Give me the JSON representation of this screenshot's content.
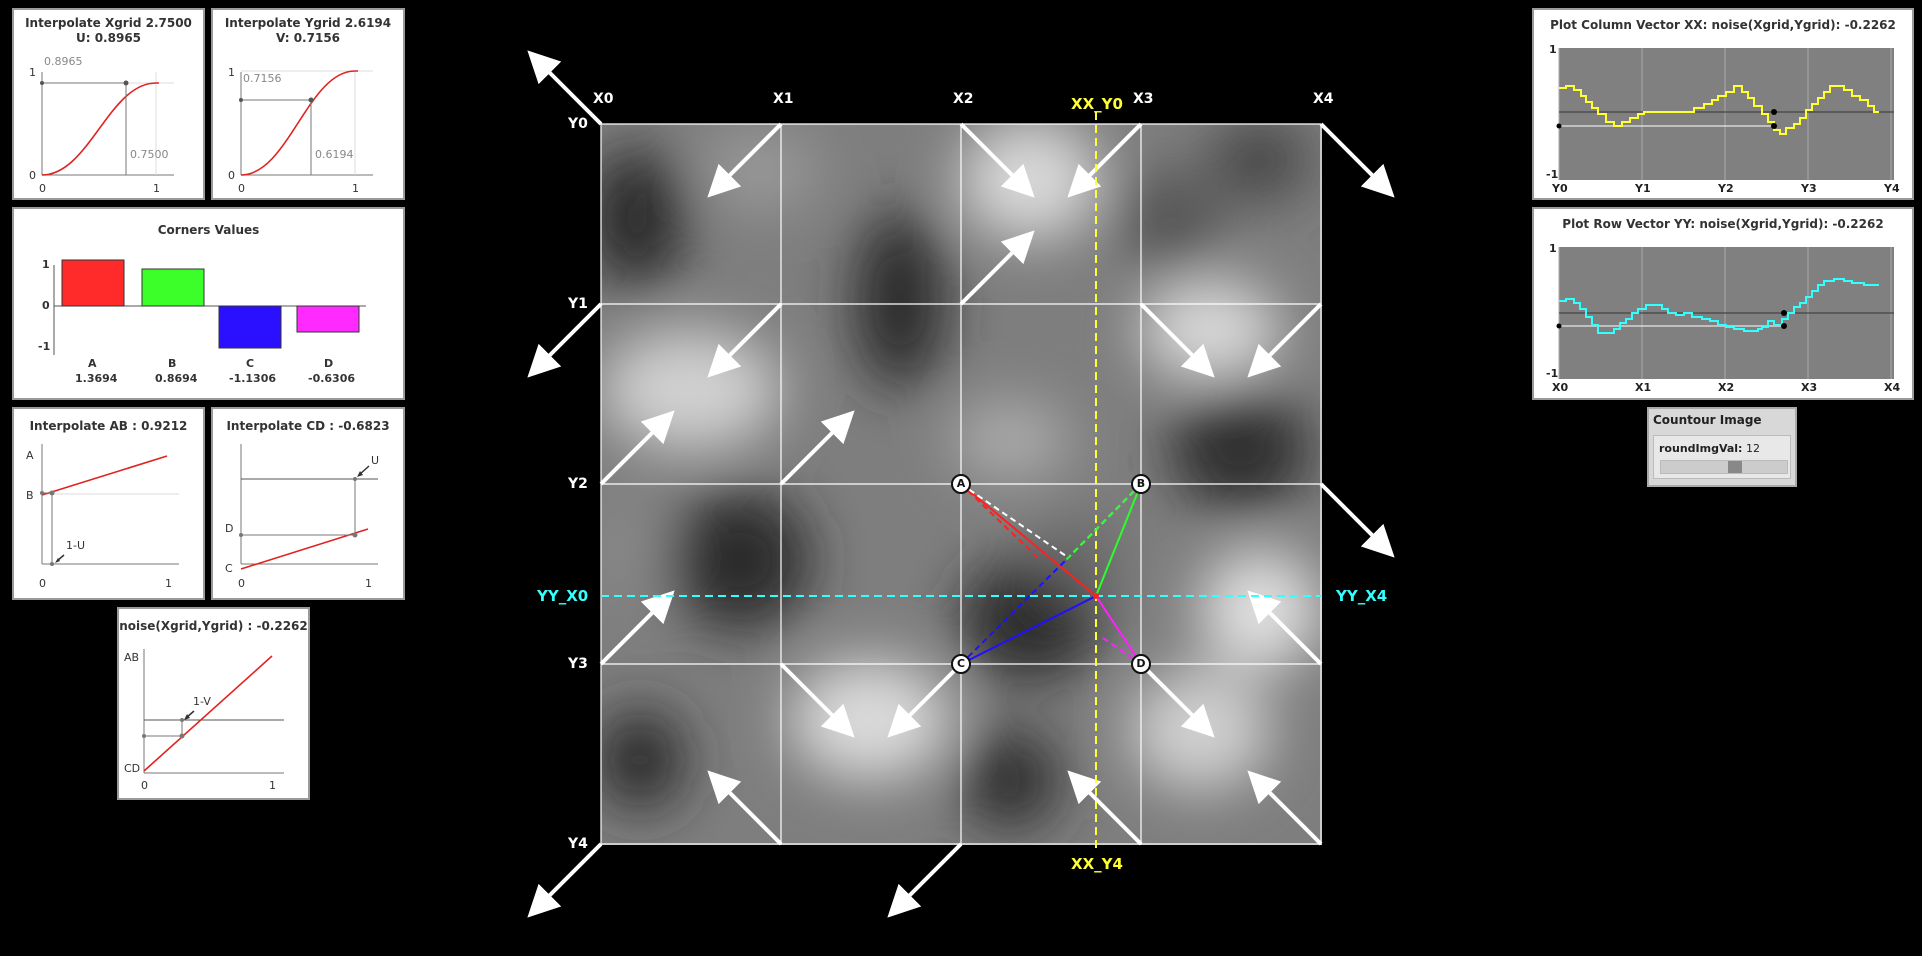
{
  "xgrid_panel": {
    "title": "Interpolate Xgrid 2.7500",
    "sub": "U: 0.8965",
    "y_value": "0.8965",
    "x_value": "0.7500",
    "tick_y1": "1",
    "tick_y0": "0",
    "tick_x0": "0",
    "tick_x1": "1"
  },
  "ygrid_panel": {
    "title": "Interpolate Ygrid 2.6194",
    "sub": "V: 0.7156",
    "y_value": "0.7156",
    "x_value": "0.6194",
    "tick_y1": "1",
    "tick_y0": "0",
    "tick_x0": "0",
    "tick_x1": "1"
  },
  "corners_panel": {
    "title": "Corners Values",
    "tick_top": "1",
    "tick_mid": "0",
    "tick_bot": "-1",
    "bars": [
      {
        "name": "A",
        "value": "1.3694",
        "color": "#ff2a2a"
      },
      {
        "name": "B",
        "value": "0.8694",
        "color": "#3cff2a"
      },
      {
        "name": "C",
        "value": "-1.1306",
        "color": "#2a10ff"
      },
      {
        "name": "D",
        "value": "-0.6306",
        "color": "#ff2aff"
      }
    ]
  },
  "ab_panel": {
    "title": "Interpolate AB : 0.9212",
    "label_a": "A",
    "label_b": "B",
    "label_u": "1-U",
    "tick_x0": "0",
    "tick_x1": "1"
  },
  "cd_panel": {
    "title": "Interpolate CD : -0.6823",
    "label_d": "D",
    "label_c": "C",
    "label_u": "U",
    "tick_x0": "0",
    "tick_x1": "1"
  },
  "noise_panel": {
    "title": "noise(Xgrid,Ygrid) : -0.2262",
    "label_ab": "AB",
    "label_cd": "CD",
    "label_v": "1-V",
    "tick_x0": "0",
    "tick_x1": "1"
  },
  "main": {
    "x_labels": [
      "X0",
      "X1",
      "X2",
      "X3",
      "X4"
    ],
    "y_labels": [
      "Y0",
      "Y1",
      "Y2",
      "Y3",
      "Y4"
    ],
    "xx_top": "XX_Y0",
    "xx_bottom": "XX_Y4",
    "yy_left": "YY_X0",
    "yy_right": "YY_X4",
    "corners": [
      "A",
      "B",
      "C",
      "D"
    ],
    "colors": {
      "xx_line": "#ffff33",
      "yy_line": "#33ffff",
      "grid": "#ffffff"
    }
  },
  "col_plot": {
    "title": "Plot Column Vector XX: noise(Xgrid,Ygrid): -0.2262",
    "tick_top": "1",
    "tick_bot": "-1",
    "x_ticks": [
      "Y0",
      "Y1",
      "Y2",
      "Y3",
      "Y4"
    ],
    "color": "#ffff33"
  },
  "row_plot": {
    "title": "Plot Row Vector YY: noise(Xgrid,Ygrid): -0.2262",
    "tick_top": "1",
    "tick_bot": "-1",
    "x_ticks": [
      "X0",
      "X1",
      "X2",
      "X3",
      "X4"
    ],
    "color": "#33ffff"
  },
  "contour_control": {
    "title": "Countour Image",
    "label": "roundImgVal:",
    "value": "12",
    "slider_fraction": 0.6
  }
}
